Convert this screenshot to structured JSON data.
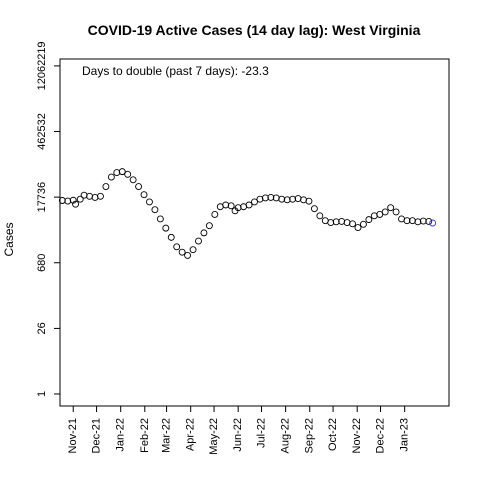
{
  "chart_data": {
    "type": "scatter",
    "title": "COVID-19 Active Cases (14 day lag): West Virginia",
    "ylabel": "Cases",
    "annotation": "Days to double (past 7 days): -23.3",
    "y_scale": "log",
    "y_ticks": [
      {
        "value": 1,
        "label": "1"
      },
      {
        "value": 26,
        "label": "26"
      },
      {
        "value": 680,
        "label": "680"
      },
      {
        "value": 17736,
        "label": "17736"
      },
      {
        "value": 462532,
        "label": "462532"
      },
      {
        "value": 12062219,
        "label": "12062219"
      }
    ],
    "x_ticks": [
      {
        "date": "2021-11-01",
        "label": "Nov-21"
      },
      {
        "date": "2021-12-01",
        "label": "Dec-21"
      },
      {
        "date": "2022-01-01",
        "label": "Jan-22"
      },
      {
        "date": "2022-02-01",
        "label": "Feb-22"
      },
      {
        "date": "2022-03-01",
        "label": "Mar-22"
      },
      {
        "date": "2022-04-01",
        "label": "Apr-22"
      },
      {
        "date": "2022-05-01",
        "label": "May-22"
      },
      {
        "date": "2022-06-01",
        "label": "Jun-22"
      },
      {
        "date": "2022-07-01",
        "label": "Jul-22"
      },
      {
        "date": "2022-08-01",
        "label": "Aug-22"
      },
      {
        "date": "2022-09-01",
        "label": "Sep-22"
      },
      {
        "date": "2022-10-01",
        "label": "Oct-22"
      },
      {
        "date": "2022-11-01",
        "label": "Nov-22"
      },
      {
        "date": "2022-12-01",
        "label": "Dec-22"
      },
      {
        "date": "2023-01-01",
        "label": "Jan-23"
      }
    ],
    "xlim": [
      "2021-10-15",
      "2023-02-27"
    ],
    "ylim": [
      0.55,
      17000000
    ],
    "series": [
      {
        "points": [
          [
            "2021-10-18",
            15000
          ],
          [
            "2021-10-25",
            14600
          ],
          [
            "2021-11-01",
            15200
          ],
          [
            "2021-11-04",
            12500
          ],
          [
            "2021-11-10",
            16000
          ],
          [
            "2021-11-15",
            19500
          ],
          [
            "2021-11-22",
            18500
          ],
          [
            "2021-11-29",
            17500
          ],
          [
            "2021-12-06",
            18500
          ],
          [
            "2021-12-13",
            30000
          ],
          [
            "2021-12-20",
            48000
          ],
          [
            "2021-12-27",
            60000
          ],
          [
            "2022-01-03",
            63000
          ],
          [
            "2022-01-10",
            55000
          ],
          [
            "2022-01-17",
            42000
          ],
          [
            "2022-01-24",
            30000
          ],
          [
            "2022-01-31",
            20000
          ],
          [
            "2022-02-07",
            14000
          ],
          [
            "2022-02-14",
            9500
          ],
          [
            "2022-02-21",
            6000
          ],
          [
            "2022-02-28",
            3800
          ],
          [
            "2022-03-07",
            2400
          ],
          [
            "2022-03-14",
            1500
          ],
          [
            "2022-03-21",
            1150
          ],
          [
            "2022-03-28",
            980
          ],
          [
            "2022-04-04",
            1300
          ],
          [
            "2022-04-11",
            2000
          ],
          [
            "2022-04-18",
            3000
          ],
          [
            "2022-04-25",
            4300
          ],
          [
            "2022-05-02",
            7500
          ],
          [
            "2022-05-09",
            11000
          ],
          [
            "2022-05-16",
            12000
          ],
          [
            "2022-05-23",
            11500
          ],
          [
            "2022-05-28",
            9000
          ],
          [
            "2022-06-01",
            10500
          ],
          [
            "2022-06-08",
            11000
          ],
          [
            "2022-06-15",
            12000
          ],
          [
            "2022-06-22",
            14000
          ],
          [
            "2022-06-29",
            16000
          ],
          [
            "2022-07-06",
            17000
          ],
          [
            "2022-07-13",
            17500
          ],
          [
            "2022-07-20",
            17000
          ],
          [
            "2022-07-27",
            16000
          ],
          [
            "2022-08-03",
            15500
          ],
          [
            "2022-08-10",
            16000
          ],
          [
            "2022-08-17",
            16500
          ],
          [
            "2022-08-24",
            15500
          ],
          [
            "2022-08-31",
            14500
          ],
          [
            "2022-09-07",
            10000
          ],
          [
            "2022-09-14",
            7000
          ],
          [
            "2022-09-21",
            5500
          ],
          [
            "2022-09-28",
            5000
          ],
          [
            "2022-10-05",
            5200
          ],
          [
            "2022-10-12",
            5300
          ],
          [
            "2022-10-19",
            5000
          ],
          [
            "2022-10-26",
            4700
          ],
          [
            "2022-11-02",
            3900
          ],
          [
            "2022-11-09",
            4600
          ],
          [
            "2022-11-16",
            5800
          ],
          [
            "2022-11-23",
            7000
          ],
          [
            "2022-11-30",
            7500
          ],
          [
            "2022-12-07",
            8500
          ],
          [
            "2022-12-14",
            10500
          ],
          [
            "2022-12-21",
            8500
          ],
          [
            "2022-12-28",
            6000
          ],
          [
            "2023-01-04",
            5500
          ],
          [
            "2023-01-11",
            5500
          ],
          [
            "2023-01-18",
            5200
          ],
          [
            "2023-01-25",
            5400
          ],
          [
            "2023-02-01",
            5300
          ],
          [
            "2023-02-06",
            4900
          ]
        ]
      }
    ]
  }
}
